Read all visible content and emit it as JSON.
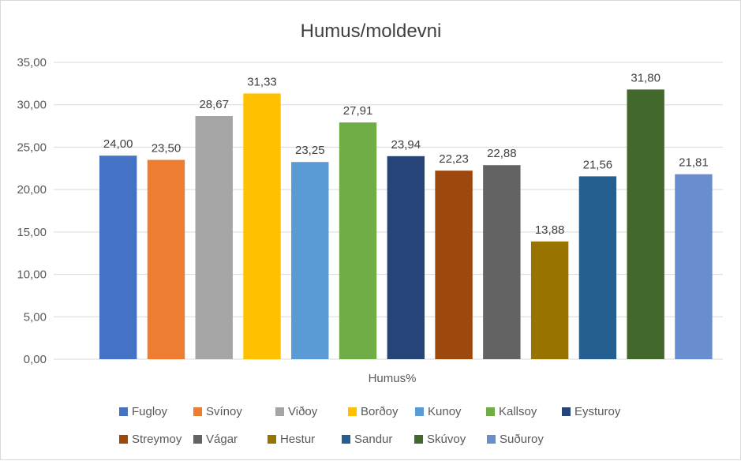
{
  "chart_data": {
    "type": "bar",
    "title": "Humus/moldevni",
    "xlabel": "Humus%",
    "ylabel": "",
    "ylim": [
      0,
      35
    ],
    "yticks": [
      "0,00",
      "5,00",
      "10,00",
      "15,00",
      "20,00",
      "25,00",
      "30,00",
      "35,00"
    ],
    "ytick_values": [
      0,
      5,
      10,
      15,
      20,
      25,
      30,
      35
    ],
    "grid": true,
    "legend_position": "bottom",
    "series": [
      {
        "name": "Fugloy",
        "value": 24.0,
        "label": "24,00",
        "color": "#4472c4"
      },
      {
        "name": "Svínoy",
        "value": 23.5,
        "label": "23,50",
        "color": "#ed7d31"
      },
      {
        "name": "Viðoy",
        "value": 28.67,
        "label": "28,67",
        "color": "#a5a5a5"
      },
      {
        "name": "Borðoy",
        "value": 31.33,
        "label": "31,33",
        "color": "#ffc000"
      },
      {
        "name": "Kunoy",
        "value": 23.25,
        "label": "23,25",
        "color": "#5b9bd5"
      },
      {
        "name": "Kallsoy",
        "value": 27.91,
        "label": "27,91",
        "color": "#70ad47"
      },
      {
        "name": "Eysturoy",
        "value": 23.94,
        "label": "23,94",
        "color": "#264478"
      },
      {
        "name": "Streymoy",
        "value": 22.23,
        "label": "22,23",
        "color": "#9e480e"
      },
      {
        "name": "Vágar",
        "value": 22.88,
        "label": "22,88",
        "color": "#636363"
      },
      {
        "name": "Hestur",
        "value": 13.88,
        "label": "13,88",
        "color": "#997300"
      },
      {
        "name": "Sandur",
        "value": 21.56,
        "label": "21,56",
        "color": "#255e91"
      },
      {
        "name": "Skúvoy",
        "value": 31.8,
        "label": "31,80",
        "color": "#43682b"
      },
      {
        "name": "Suðuroy",
        "value": 21.81,
        "label": "21,81",
        "color": "#698ed0"
      }
    ]
  }
}
